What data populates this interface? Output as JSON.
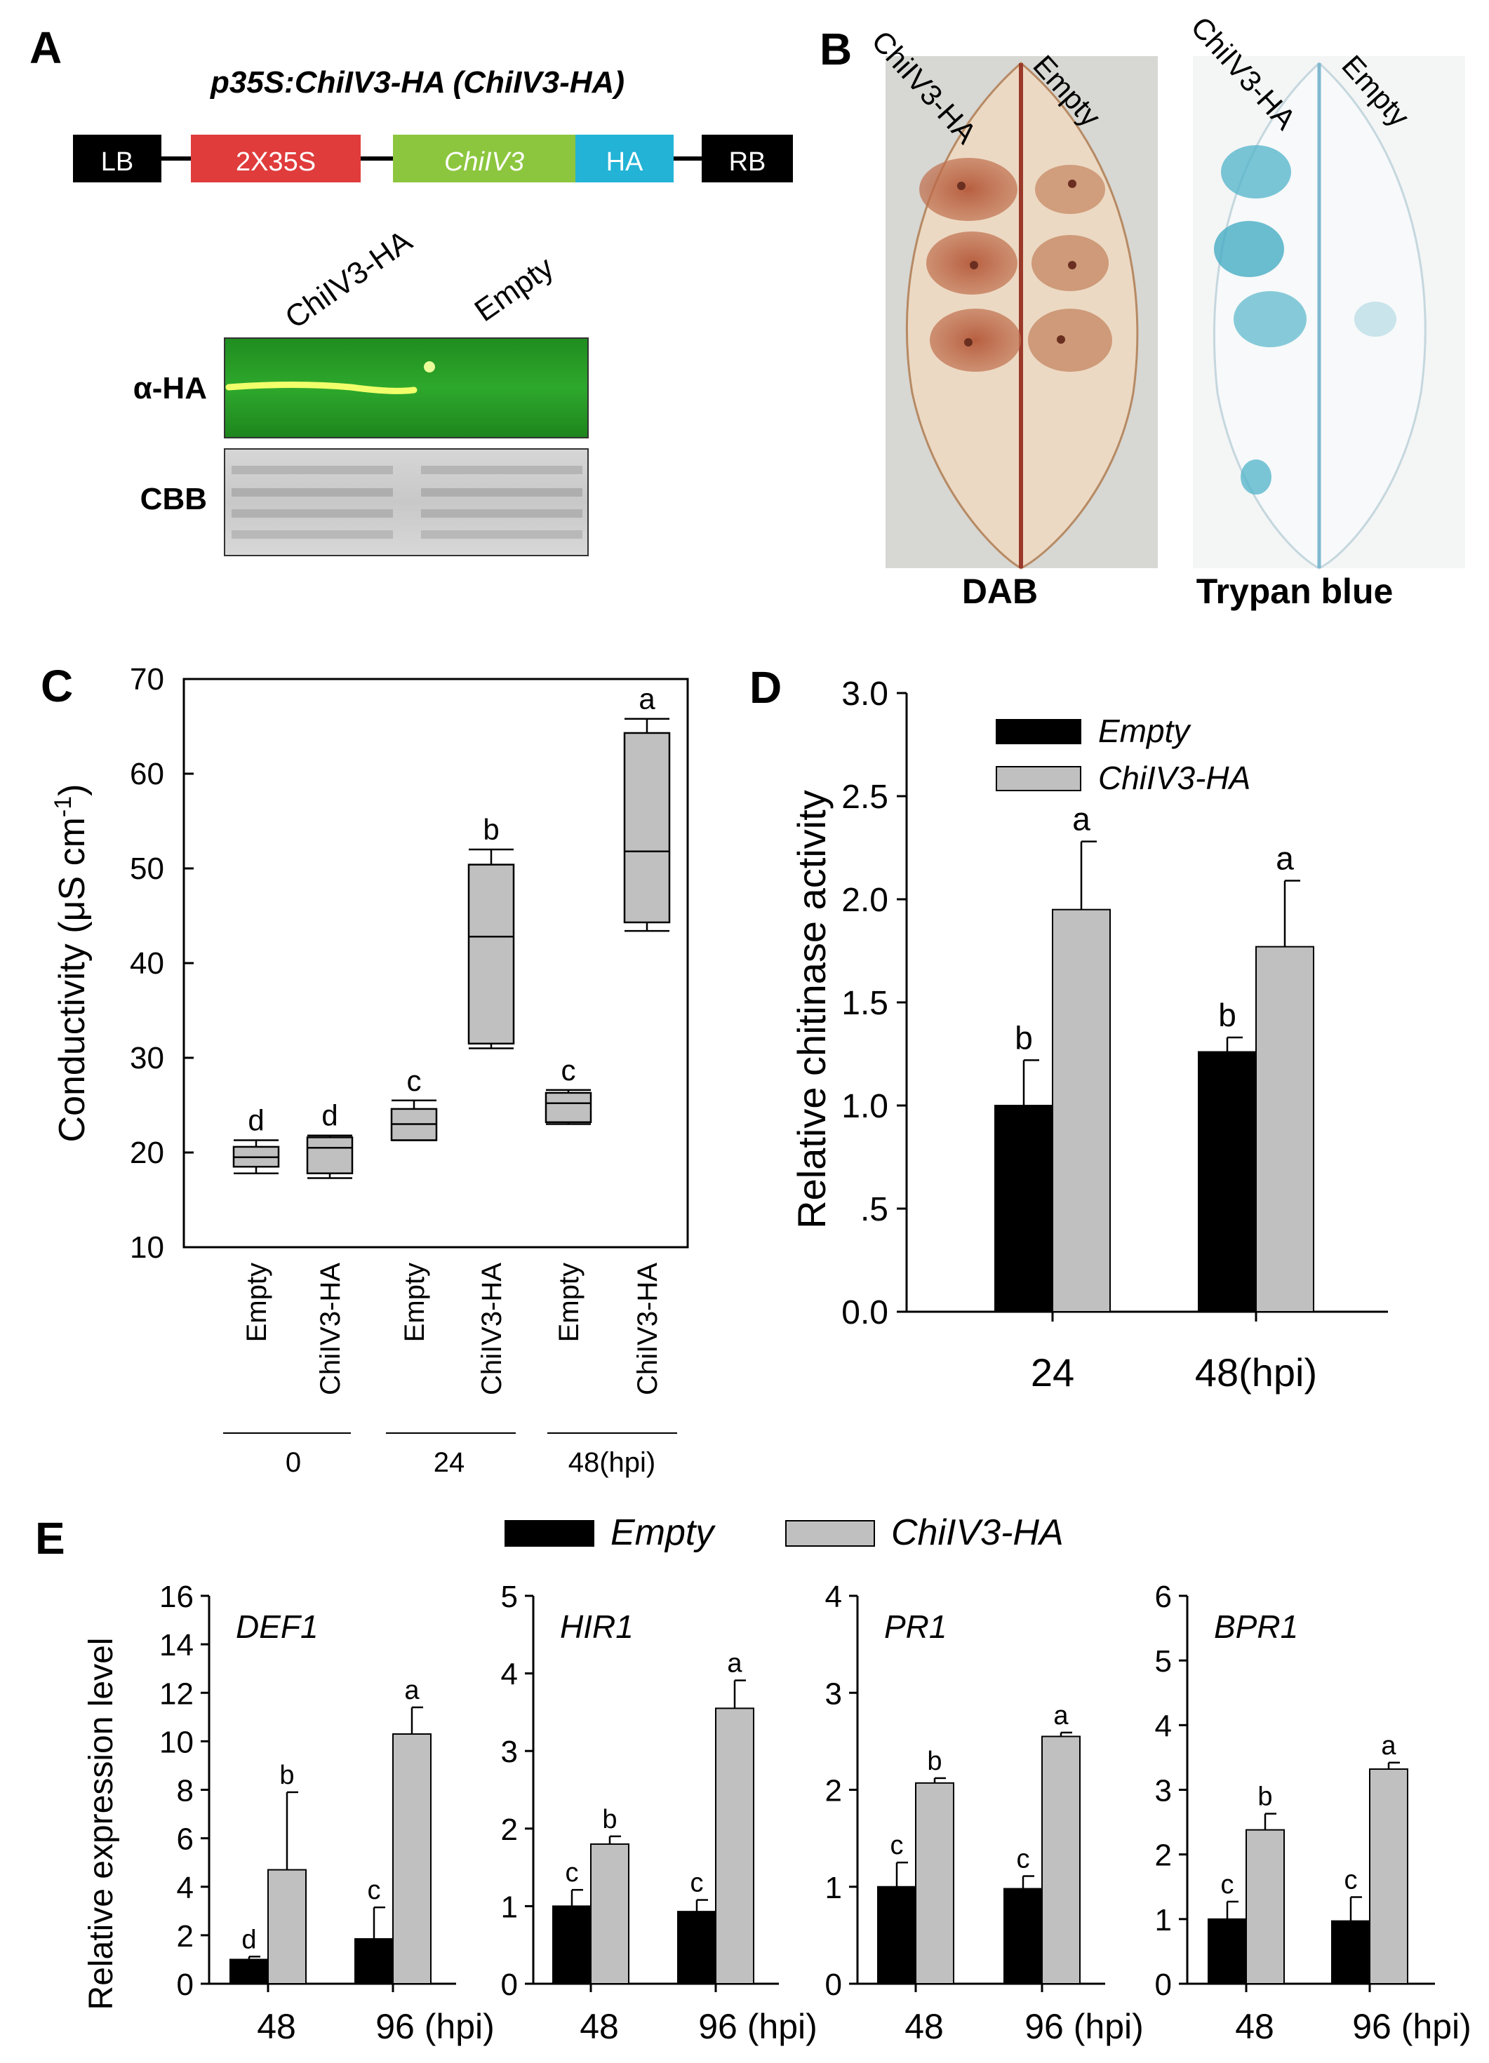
{
  "panels": {
    "A": {
      "label": "A",
      "construct_title_italic": "p35S:ChiIV3-HA",
      "construct_title_rest": " (ChiIV3-HA)",
      "construct_parts": [
        "LB",
        "2X35S",
        "ChiIV3",
        "HA",
        "RB"
      ],
      "part_colors": [
        "#000000",
        "#e03c3c",
        "#8cc63e",
        "#22b3d6",
        "#000000"
      ],
      "blot_lanes": [
        "ChiIV3-HA",
        "Empty"
      ],
      "blot_rows": [
        "α-HA",
        "CBB"
      ]
    },
    "B": {
      "label": "B",
      "leaf1_caption": "DAB",
      "leaf2_caption": "Trypan blue",
      "leaf_labels": [
        "ChiIV3-HA",
        "Empty"
      ]
    },
    "C": {
      "label": "C"
    },
    "D": {
      "label": "D"
    },
    "E": {
      "label": "E",
      "legend": [
        "Empty",
        "ChiIV3-HA"
      ]
    }
  },
  "chart_data": [
    {
      "id": "C",
      "type": "box",
      "ylabel": "Conductivity (μS cm-1)",
      "ylim": [
        10,
        70
      ],
      "yticks": [
        10,
        20,
        30,
        40,
        50,
        60,
        70
      ],
      "categories": [
        "Empty",
        "ChiIV3-HA",
        "Empty",
        "ChiIV3-HA",
        "Empty",
        "ChiIV3-HA"
      ],
      "groups": [
        "0",
        "24",
        "48(hpi)"
      ],
      "boxes": [
        {
          "min": 17.8,
          "q1": 18.5,
          "median": 19.5,
          "q3": 20.6,
          "max": 21.3,
          "letter": "d"
        },
        {
          "min": 17.3,
          "q1": 17.8,
          "median": 20.5,
          "q3": 21.6,
          "max": 21.8,
          "letter": "d"
        },
        {
          "min": 21.3,
          "q1": 21.3,
          "median": 23.0,
          "q3": 24.6,
          "max": 25.5,
          "letter": "c"
        },
        {
          "min": 31.0,
          "q1": 31.5,
          "median": 42.8,
          "q3": 50.4,
          "max": 52.0,
          "letter": "b"
        },
        {
          "min": 23.0,
          "q1": 23.2,
          "median": 25.2,
          "q3": 26.3,
          "max": 26.6,
          "letter": "c"
        },
        {
          "min": 43.4,
          "q1": 44.3,
          "median": 51.8,
          "q3": 64.3,
          "max": 65.8,
          "letter": "a"
        }
      ]
    },
    {
      "id": "D",
      "type": "bar",
      "ylabel": "Relative chitinase activity",
      "ylim": [
        0,
        3.0
      ],
      "ytick_labels": [
        "0.0",
        ".5",
        "1.0",
        "1.5",
        "2.0",
        "2.5",
        "3.0"
      ],
      "categories": [
        "24",
        "48(hpi)"
      ],
      "series": [
        {
          "name": "Empty",
          "values": [
            1.0,
            1.26
          ],
          "errors": [
            0.22,
            0.07
          ],
          "letters": [
            "b",
            "b"
          ]
        },
        {
          "name": "ChiIV3-HA",
          "values": [
            1.95,
            1.77
          ],
          "errors": [
            0.33,
            0.32
          ],
          "letters": [
            "a",
            "a"
          ]
        }
      ]
    },
    {
      "id": "E",
      "type": "bar",
      "ylabel": "Relative expression level",
      "categories": [
        "48",
        "96 (hpi)"
      ],
      "subplots": [
        {
          "gene": "DEF1",
          "ylim": [
            0,
            16
          ],
          "yticks": [
            0,
            2,
            4,
            6,
            8,
            10,
            12,
            14,
            16
          ],
          "series": [
            {
              "name": "Empty",
              "values": [
                1.0,
                1.85
              ],
              "errors": [
                0.12,
                1.3
              ],
              "letters": [
                "d",
                "c"
              ]
            },
            {
              "name": "ChiIV3-HA",
              "values": [
                4.7,
                10.3
              ],
              "errors": [
                3.2,
                1.1
              ],
              "letters": [
                "b",
                "a"
              ]
            }
          ]
        },
        {
          "gene": "HIR1",
          "ylim": [
            0,
            5
          ],
          "yticks": [
            0,
            1,
            2,
            3,
            4,
            5
          ],
          "series": [
            {
              "name": "Empty",
              "values": [
                1.0,
                0.93
              ],
              "errors": [
                0.21,
                0.15
              ],
              "letters": [
                "c",
                "c"
              ]
            },
            {
              "name": "ChiIV3-HA",
              "values": [
                1.8,
                3.55
              ],
              "errors": [
                0.1,
                0.36
              ],
              "letters": [
                "b",
                "a"
              ]
            }
          ]
        },
        {
          "gene": "PR1",
          "ylim": [
            0,
            4
          ],
          "yticks": [
            0,
            1,
            2,
            3,
            4
          ],
          "series": [
            {
              "name": "Empty",
              "values": [
                1.0,
                0.98
              ],
              "errors": [
                0.25,
                0.13
              ],
              "letters": [
                "c",
                "c"
              ]
            },
            {
              "name": "ChiIV3-HA",
              "values": [
                2.07,
                2.55
              ],
              "errors": [
                0.05,
                0.04
              ],
              "letters": [
                "b",
                "a"
              ]
            }
          ]
        },
        {
          "gene": "BPR1",
          "ylim": [
            0,
            6
          ],
          "yticks": [
            0,
            1,
            2,
            3,
            4,
            5,
            6
          ],
          "series": [
            {
              "name": "Empty",
              "values": [
                1.0,
                0.97
              ],
              "errors": [
                0.27,
                0.37
              ],
              "letters": [
                "c",
                "c"
              ]
            },
            {
              "name": "ChiIV3-HA",
              "values": [
                2.38,
                3.32
              ],
              "errors": [
                0.25,
                0.1
              ],
              "letters": [
                "b",
                "a"
              ]
            }
          ]
        }
      ]
    }
  ]
}
